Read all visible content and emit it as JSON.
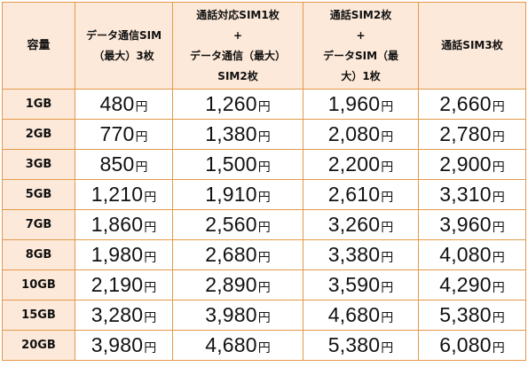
{
  "header": {
    "capacity": "容量",
    "col1": [
      "データ通信SIM",
      "（最大）3枚"
    ],
    "col2": [
      "通話対応SIM1枚",
      "+",
      "データ通信（最大）",
      "SIM2枚"
    ],
    "col3": [
      "通話SIM2枚",
      "+",
      "データSIM（最",
      "大）1枚"
    ],
    "col4": [
      "通話SIM3枚"
    ]
  },
  "yen_unit": "円",
  "rows": [
    {
      "capacity": "1GB",
      "prices": [
        "480",
        "1,260",
        "1,960",
        "2,660"
      ]
    },
    {
      "capacity": "2GB",
      "prices": [
        "770",
        "1,380",
        "2,080",
        "2,780"
      ]
    },
    {
      "capacity": "3GB",
      "prices": [
        "850",
        "1,500",
        "2,200",
        "2,900"
      ]
    },
    {
      "capacity": "5GB",
      "prices": [
        "1,210",
        "1,910",
        "2,610",
        "3,310"
      ]
    },
    {
      "capacity": "7GB",
      "prices": [
        "1,860",
        "2,560",
        "3,260",
        "3,960"
      ]
    },
    {
      "capacity": "8GB",
      "prices": [
        "1,980",
        "2,680",
        "3,380",
        "4,080"
      ]
    },
    {
      "capacity": "10GB",
      "prices": [
        "2,190",
        "2,890",
        "3,590",
        "4,290"
      ]
    },
    {
      "capacity": "15GB",
      "prices": [
        "3,280",
        "3,980",
        "4,680",
        "5,380"
      ]
    },
    {
      "capacity": "20GB",
      "prices": [
        "3,980",
        "4,680",
        "5,380",
        "6,080"
      ]
    }
  ],
  "colors": {
    "header_bg": "#fde9d9",
    "border": "#e39a4a"
  }
}
